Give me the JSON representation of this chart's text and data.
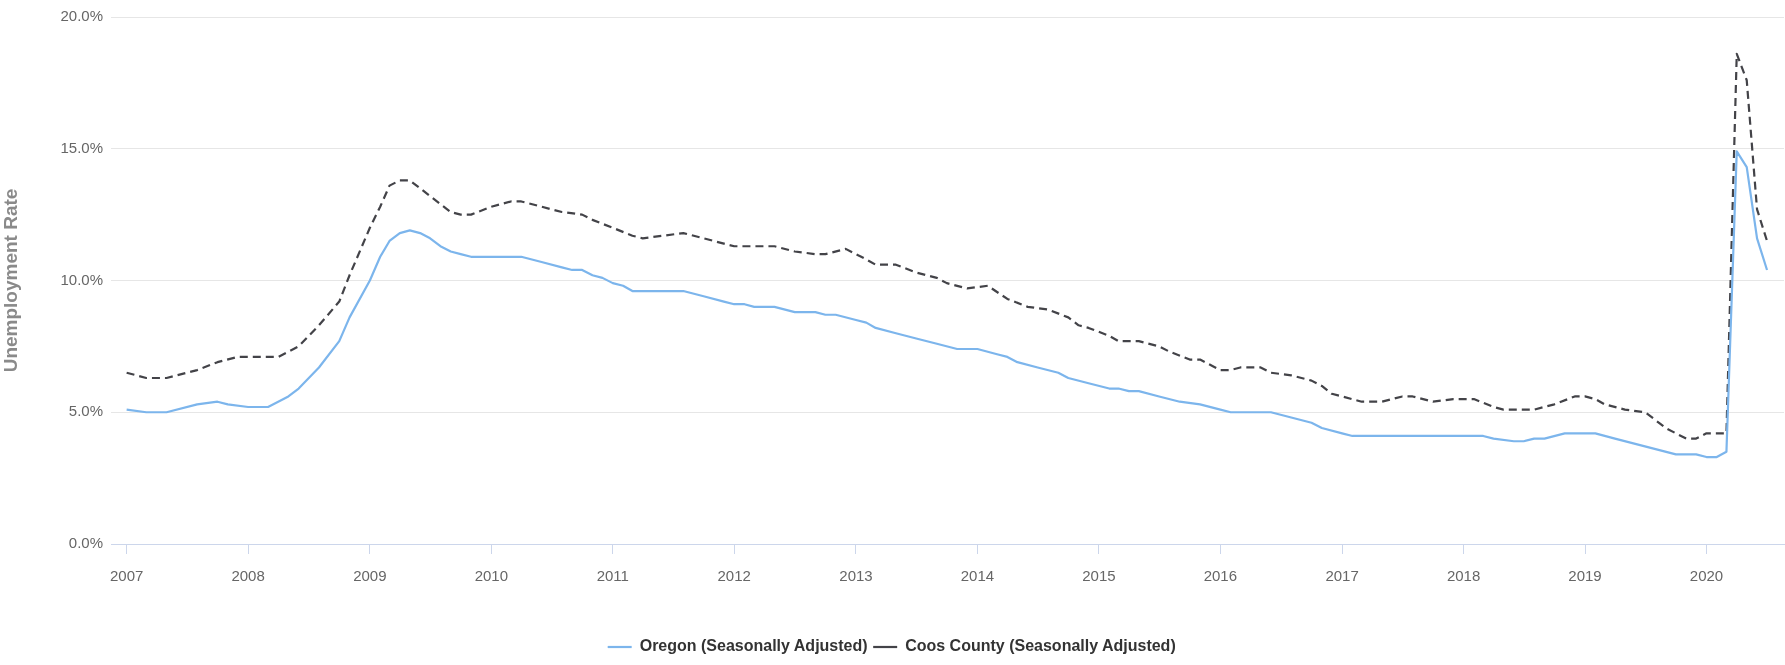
{
  "chart_data": {
    "type": "line",
    "ylabel": "Unemployment Rate",
    "xlim": [
      "2006-11-15",
      "2020-08-21"
    ],
    "xticks": [
      "2007",
      "2008",
      "2009",
      "2010",
      "2011",
      "2012",
      "2013",
      "2014",
      "2015",
      "2016",
      "2017",
      "2018",
      "2019",
      "2020"
    ],
    "ylim": [
      0,
      20
    ],
    "yticks": [
      {
        "value": 0,
        "label": "0.0%"
      },
      {
        "value": 5,
        "label": "5.0%"
      },
      {
        "value": 10,
        "label": "10.0%"
      },
      {
        "value": 15,
        "label": "15.0%"
      },
      {
        "value": 20,
        "label": "20.0%"
      }
    ],
    "grid": "y",
    "legend": "bottom",
    "series": [
      {
        "name": "Oregon (Seasonally Adjusted)",
        "color": "#7cb5ec",
        "line_style": "solid",
        "x": [
          "2007-01",
          "2007-03",
          "2007-05",
          "2007-08",
          "2007-10",
          "2007-11",
          "2008-01",
          "2008-03",
          "2008-05",
          "2008-06",
          "2008-08",
          "2008-10",
          "2008-11",
          "2009-01",
          "2009-02",
          "2009-03",
          "2009-04",
          "2009-05",
          "2009-06",
          "2009-07",
          "2009-08",
          "2009-09",
          "2009-10",
          "2009-11",
          "2010-04",
          "2010-06",
          "2010-08",
          "2010-09",
          "2010-10",
          "2010-11",
          "2010-12",
          "2011-01",
          "2011-02",
          "2011-03",
          "2011-08",
          "2011-10",
          "2011-12",
          "2012-01",
          "2012-02",
          "2012-03",
          "2012-05",
          "2012-07",
          "2012-09",
          "2012-10",
          "2012-11",
          "2013-01",
          "2013-02",
          "2013-03",
          "2013-05",
          "2013-07",
          "2013-09",
          "2013-11",
          "2014-01",
          "2014-03",
          "2014-04",
          "2014-05",
          "2014-07",
          "2014-09",
          "2014-10",
          "2014-12",
          "2015-02",
          "2015-03",
          "2015-04",
          "2015-05",
          "2015-07",
          "2015-09",
          "2015-11",
          "2016-01",
          "2016-02",
          "2016-06",
          "2016-08",
          "2016-10",
          "2016-11",
          "2017-01",
          "2017-02",
          "2018-03",
          "2018-04",
          "2018-06",
          "2018-07",
          "2018-08",
          "2018-09",
          "2018-11",
          "2019-02",
          "2019-04",
          "2019-06",
          "2019-08",
          "2019-10",
          "2019-12",
          "2020-01",
          "2020-02",
          "2020-03",
          "2020-04",
          "2020-05",
          "2020-06",
          "2020-07"
        ],
        "values": [
          5.1,
          5.0,
          5.0,
          5.3,
          5.4,
          5.3,
          5.2,
          5.2,
          5.6,
          5.9,
          6.7,
          7.7,
          8.6,
          10.0,
          10.9,
          11.5,
          11.8,
          11.9,
          11.8,
          11.6,
          11.3,
          11.1,
          11.0,
          10.9,
          10.9,
          10.7,
          10.5,
          10.4,
          10.4,
          10.2,
          10.1,
          9.9,
          9.8,
          9.6,
          9.6,
          9.4,
          9.2,
          9.1,
          9.1,
          9.0,
          9.0,
          8.8,
          8.8,
          8.7,
          8.7,
          8.5,
          8.4,
          8.2,
          8.0,
          7.8,
          7.6,
          7.4,
          7.4,
          7.2,
          7.1,
          6.9,
          6.7,
          6.5,
          6.3,
          6.1,
          5.9,
          5.9,
          5.8,
          5.8,
          5.6,
          5.4,
          5.3,
          5.1,
          5.0,
          5.0,
          4.8,
          4.6,
          4.4,
          4.2,
          4.1,
          4.1,
          4.0,
          3.9,
          3.9,
          4.0,
          4.0,
          4.2,
          4.2,
          4.0,
          3.8,
          3.6,
          3.4,
          3.4,
          3.3,
          3.3,
          3.5,
          14.9,
          14.3,
          11.6,
          10.4
        ]
      },
      {
        "name": "Coos County (Seasonally Adjusted)",
        "color": "#434348",
        "line_style": "dashed",
        "x": [
          "2007-01",
          "2007-03",
          "2007-05",
          "2007-07",
          "2007-08",
          "2007-10",
          "2007-12",
          "2008-04",
          "2008-06",
          "2008-08",
          "2008-10",
          "2008-11",
          "2009-01",
          "2009-02",
          "2009-03",
          "2009-04",
          "2009-05",
          "2009-06",
          "2009-07",
          "2009-08",
          "2009-09",
          "2009-10",
          "2009-11",
          "2010-01",
          "2010-03",
          "2010-04",
          "2010-06",
          "2010-08",
          "2010-10",
          "2010-11",
          "2011-01",
          "2011-03",
          "2011-04",
          "2011-06",
          "2011-08",
          "2011-10",
          "2011-12",
          "2012-01",
          "2012-05",
          "2012-07",
          "2012-09",
          "2012-10",
          "2012-12",
          "2013-02",
          "2013-03",
          "2013-05",
          "2013-07",
          "2013-09",
          "2013-10",
          "2013-12",
          "2014-02",
          "2014-04",
          "2014-06",
          "2014-08",
          "2014-10",
          "2014-11",
          "2014-12",
          "2015-02",
          "2015-03",
          "2015-05",
          "2015-07",
          "2015-08",
          "2015-10",
          "2015-11",
          "2016-01",
          "2016-02",
          "2016-03",
          "2016-05",
          "2016-06",
          "2016-08",
          "2016-10",
          "2016-11",
          "2016-12",
          "2017-01",
          "2017-03",
          "2017-05",
          "2017-07",
          "2017-08",
          "2017-10",
          "2017-12",
          "2018-02",
          "2018-04",
          "2018-05",
          "2018-08",
          "2018-10",
          "2018-12",
          "2019-01",
          "2019-02",
          "2019-03",
          "2019-05",
          "2019-07",
          "2019-08",
          "2019-09",
          "2019-10",
          "2019-11",
          "2019-12",
          "2020-01",
          "2020-03",
          "2020-04",
          "2020-05",
          "2020-06",
          "2020-07"
        ],
        "values": [
          6.5,
          6.3,
          6.3,
          6.5,
          6.6,
          6.9,
          7.1,
          7.1,
          7.5,
          8.3,
          9.2,
          10.2,
          12.0,
          12.8,
          13.6,
          13.8,
          13.8,
          13.5,
          13.2,
          12.9,
          12.6,
          12.5,
          12.5,
          12.8,
          13.0,
          13.0,
          12.8,
          12.6,
          12.5,
          12.3,
          12.0,
          11.7,
          11.6,
          11.7,
          11.8,
          11.6,
          11.4,
          11.3,
          11.3,
          11.1,
          11.0,
          11.0,
          11.2,
          10.8,
          10.6,
          10.6,
          10.3,
          10.1,
          9.9,
          9.7,
          9.8,
          9.3,
          9.0,
          8.9,
          8.6,
          8.3,
          8.2,
          7.9,
          7.7,
          7.7,
          7.5,
          7.3,
          7.0,
          7.0,
          6.6,
          6.6,
          6.7,
          6.7,
          6.5,
          6.4,
          6.2,
          6.0,
          5.7,
          5.6,
          5.4,
          5.4,
          5.6,
          5.6,
          5.4,
          5.5,
          5.5,
          5.2,
          5.1,
          5.1,
          5.3,
          5.6,
          5.6,
          5.5,
          5.3,
          5.1,
          5.0,
          4.7,
          4.4,
          4.2,
          4.0,
          4.0,
          4.2,
          4.2,
          18.6,
          17.6,
          12.7,
          11.5
        ]
      }
    ]
  }
}
